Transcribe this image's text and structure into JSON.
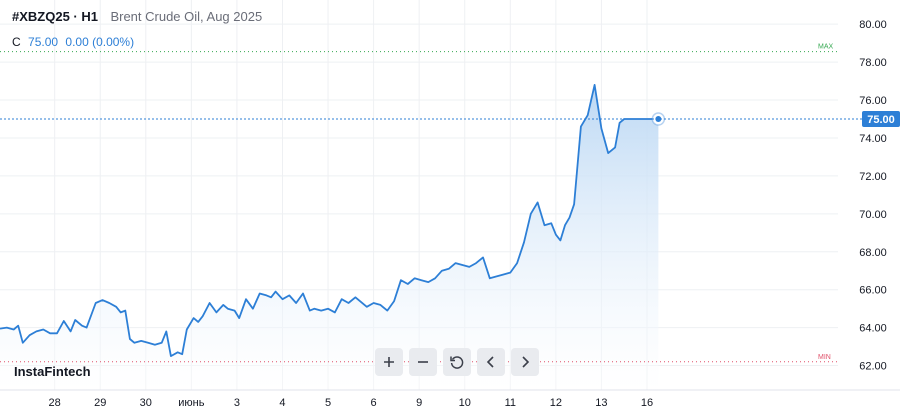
{
  "legend": {
    "symbol": "#XBZQ25 · H1",
    "description": "Brent Crude Oil, Aug 2025",
    "ohlc_label": "C",
    "close": "75.00",
    "change": "0.00 (0.00%)"
  },
  "brand": "InstaFintech",
  "toolbar": {
    "zoom_in_icon": "plus-icon",
    "zoom_out_icon": "minus-icon",
    "reset_icon": "reset-icon",
    "scroll_left_icon": "chevron-left-icon",
    "scroll_right_icon": "chevron-right-icon"
  },
  "colors": {
    "line": "#2d7fd6",
    "area_top": "#bcd8f4",
    "grid": "#eef0f3",
    "max_line": "#35a851",
    "min_line": "#e0506a",
    "price_label_bg": "#2d7fd6"
  },
  "chart_data": {
    "type": "area",
    "ylim": [
      60.5,
      80.8
    ],
    "xlim": [
      -2.2,
      16.5
    ],
    "y_ticks": [
      62,
      64,
      66,
      68,
      70,
      72,
      74,
      76,
      78,
      80
    ],
    "y_tick_labels": [
      "62.00",
      "64.00",
      "66.00",
      "68.00",
      "70.00",
      "72.00",
      "74.00",
      "76.00",
      "78.00",
      "80.00"
    ],
    "x_ticks": [
      {
        "pos": -1,
        "label": "28"
      },
      {
        "pos": 0,
        "label": "29"
      },
      {
        "pos": 1,
        "label": "30"
      },
      {
        "pos": 2,
        "label": "июнь"
      },
      {
        "pos": 3,
        "label": "3"
      },
      {
        "pos": 4,
        "label": "4"
      },
      {
        "pos": 5,
        "label": "5"
      },
      {
        "pos": 6,
        "label": "6"
      },
      {
        "pos": 7,
        "label": "9"
      },
      {
        "pos": 8,
        "label": "10"
      },
      {
        "pos": 9,
        "label": "11"
      },
      {
        "pos": 10,
        "label": "12"
      },
      {
        "pos": 11,
        "label": "13"
      },
      {
        "pos": 12,
        "label": "16"
      }
    ],
    "current_price": 75.0,
    "current_price_label": "75.00",
    "max_level": 78.55,
    "max_label": "MAX",
    "min_level": 62.2,
    "min_label": "MIN",
    "grid": true,
    "x": [
      -2.2,
      -2.05,
      -1.9,
      -1.8,
      -1.7,
      -1.55,
      -1.4,
      -1.25,
      -1.1,
      -0.95,
      -0.8,
      -0.65,
      -0.55,
      -0.4,
      -0.3,
      -0.1,
      0.05,
      0.2,
      0.35,
      0.45,
      0.55,
      0.65,
      0.75,
      0.9,
      1.05,
      1.2,
      1.35,
      1.45,
      1.55,
      1.7,
      1.8,
      1.9,
      2.05,
      2.15,
      2.25,
      2.4,
      2.55,
      2.7,
      2.8,
      2.95,
      3.05,
      3.2,
      3.35,
      3.5,
      3.65,
      3.75,
      3.85,
      4.0,
      4.15,
      4.3,
      4.45,
      4.6,
      4.7,
      4.85,
      5.0,
      5.15,
      5.3,
      5.45,
      5.6,
      5.7,
      5.85,
      6.0,
      6.15,
      6.3,
      6.45,
      6.6,
      6.75,
      6.9,
      7.05,
      7.2,
      7.35,
      7.5,
      7.65,
      7.8,
      7.95,
      8.1,
      8.25,
      8.4,
      8.55,
      8.7,
      8.85,
      9.0,
      9.15,
      9.3,
      9.45,
      9.6,
      9.75,
      9.9,
      10.0,
      10.1,
      10.2,
      10.3,
      10.4,
      10.55,
      10.7,
      10.85,
      11.0,
      11.15,
      11.3,
      11.4,
      11.5,
      11.6,
      11.68,
      11.78,
      11.88,
      11.97,
      12.05,
      12.15,
      12.25
    ],
    "y": [
      63.95,
      64.0,
      63.9,
      64.1,
      63.2,
      63.6,
      63.8,
      63.9,
      63.7,
      63.7,
      64.35,
      63.8,
      64.4,
      64.1,
      64.0,
      65.3,
      65.45,
      65.3,
      65.1,
      64.8,
      64.9,
      63.4,
      63.2,
      63.3,
      63.2,
      63.1,
      63.2,
      63.8,
      62.5,
      62.7,
      62.6,
      63.9,
      64.5,
      64.3,
      64.6,
      65.3,
      64.8,
      65.2,
      65.0,
      64.9,
      64.5,
      65.5,
      65.0,
      65.8,
      65.7,
      65.6,
      65.9,
      65.5,
      65.7,
      65.3,
      65.8,
      64.9,
      65.0,
      64.9,
      65.0,
      64.8,
      65.5,
      65.3,
      65.6,
      65.4,
      65.1,
      65.3,
      65.2,
      64.9,
      65.4,
      66.5,
      66.3,
      66.6,
      66.5,
      66.4,
      66.6,
      67.0,
      67.1,
      67.4,
      67.3,
      67.2,
      67.4,
      67.7,
      66.6,
      66.7,
      66.8,
      66.9,
      67.4,
      68.5,
      70.0,
      70.6,
      69.4,
      69.5,
      68.9,
      68.6,
      69.4,
      69.8,
      70.5,
      74.6,
      75.2,
      76.8,
      74.5,
      73.2,
      73.5,
      74.8,
      75.0,
      75.0,
      75.0,
      75.0,
      75.0,
      75.0,
      75.0,
      75.0,
      75.0
    ]
  }
}
